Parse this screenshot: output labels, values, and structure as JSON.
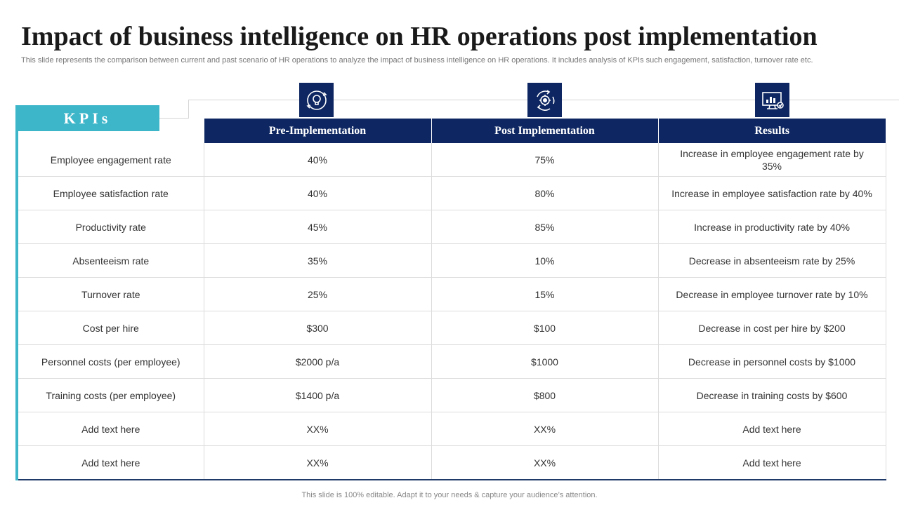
{
  "title": "Impact of business intelligence on HR operations post implementation",
  "subtitle": "This slide represents the comparison between current and past scenario of HR operations to analyze the impact of business intelligence on HR operations. It includes analysis of KPIs such engagement, satisfaction, turnover rate etc.",
  "kpi_label": "KPIs",
  "icons": [
    "lightbulb-cycle-icon",
    "gear-cycle-icon",
    "analytics-monitor-icon"
  ],
  "colors": {
    "navy": "#0e2762",
    "teal": "#3db6ca"
  },
  "table": {
    "headers": [
      "Pre-Implementation",
      "Post Implementation",
      "Results"
    ],
    "rows": [
      {
        "kpi": "Employee engagement rate",
        "pre": "40%",
        "post": "75%",
        "result": "Increase in employee engagement rate by 35%"
      },
      {
        "kpi": "Employee satisfaction rate",
        "pre": "40%",
        "post": "80%",
        "result": "Increase in employee satisfaction rate by 40%"
      },
      {
        "kpi": "Productivity rate",
        "pre": "45%",
        "post": "85%",
        "result": "Increase in productivity rate by 40%"
      },
      {
        "kpi": "Absenteeism rate",
        "pre": "35%",
        "post": "10%",
        "result": "Decrease in absenteeism rate by 25%"
      },
      {
        "kpi": "Turnover rate",
        "pre": "25%",
        "post": "15%",
        "result": "Decrease in employee turnover rate by 10%"
      },
      {
        "kpi": "Cost per hire",
        "pre": "$300",
        "post": "$100",
        "result": "Decrease in cost per hire by $200"
      },
      {
        "kpi": "Personnel costs (per employee)",
        "pre": "$2000 p/a",
        "post": "$1000",
        "result": "Decrease in personnel costs by $1000"
      },
      {
        "kpi": "Training costs (per employee)",
        "pre": "$1400 p/a",
        "post": "$800",
        "result": "Decrease in training costs by $600"
      },
      {
        "kpi": "Add text here",
        "pre": "XX%",
        "post": "XX%",
        "result": "Add text here"
      },
      {
        "kpi": "Add text here",
        "pre": "XX%",
        "post": "XX%",
        "result": "Add text here"
      }
    ]
  },
  "footer": "This slide is 100% editable. Adapt it to your needs & capture your audience’s attention."
}
